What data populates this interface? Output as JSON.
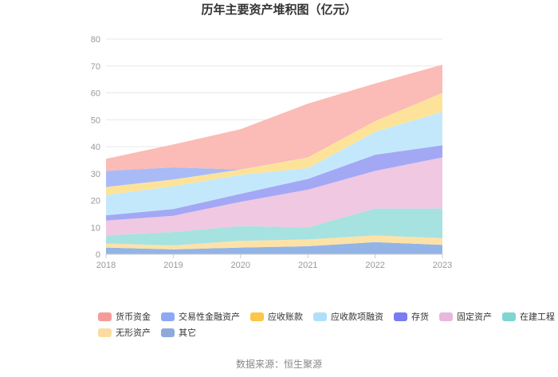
{
  "chart_data": {
    "type": "area",
    "stacked": true,
    "title": "历年主要资产堆积图（亿元）",
    "categories": [
      "2018",
      "2019",
      "2020",
      "2021",
      "2022",
      "2023"
    ],
    "ylim": [
      0,
      80
    ],
    "yticks": [
      0,
      10,
      20,
      30,
      40,
      50,
      60,
      70,
      80
    ],
    "grid": true,
    "legend_position": "bottom",
    "series": [
      {
        "name": "其它",
        "color": "#93b4e6",
        "values": [
          2.5,
          1.8,
          2.5,
          3.0,
          4.5,
          3.5
        ]
      },
      {
        "name": "无形资产",
        "color": "#fde2a8",
        "values": [
          1.5,
          1.5,
          2.5,
          2.5,
          2.5,
          2.5
        ]
      },
      {
        "name": "在建工程",
        "color": "#a6e2e0",
        "values": [
          3.0,
          5.0,
          5.5,
          4.5,
          10.0,
          11.0
        ]
      },
      {
        "name": "固定资产",
        "color": "#f0c8e2",
        "values": [
          5.5,
          6.0,
          9.0,
          14.0,
          14.0,
          19.0
        ]
      },
      {
        "name": "存货",
        "color": "#a3a8f5",
        "values": [
          2.0,
          2.5,
          3.0,
          4.0,
          6.0,
          4.5
        ]
      },
      {
        "name": "应收款项融资",
        "color": "#c4e8fb",
        "values": [
          7.5,
          8.5,
          7.0,
          4.0,
          8.5,
          12.5
        ]
      },
      {
        "name": "应收账款",
        "color": "#fde39a",
        "values": [
          3.0,
          2.5,
          2.0,
          4.0,
          4.0,
          7.0
        ]
      },
      {
        "name": "交易性金融资产",
        "color": "#a9bbf7",
        "values": [
          6.0,
          4.5,
          0.0,
          0.0,
          0.0,
          0.0
        ]
      },
      {
        "name": "货币资金",
        "color": "#fbbbb6",
        "values": [
          4.5,
          8.5,
          15.0,
          20.0,
          14.0,
          10.5
        ]
      }
    ],
    "legend_order": [
      "货币资金",
      "交易性金融资产",
      "应收账款",
      "应收款项融资",
      "存货",
      "固定资产",
      "在建工程",
      "无形资产",
      "其它"
    ],
    "legend_colors": {
      "货币资金": "#f69c98",
      "交易性金融资产": "#8fa8f6",
      "应收账款": "#fbc64a",
      "应收款项融资": "#aee0fb",
      "存货": "#7b7cf0",
      "固定资产": "#e8b7db",
      "在建工程": "#7ed6d3",
      "无形资产": "#fddba0",
      "其它": "#8fa9dc"
    },
    "source": "数据来源：恒生聚源"
  }
}
